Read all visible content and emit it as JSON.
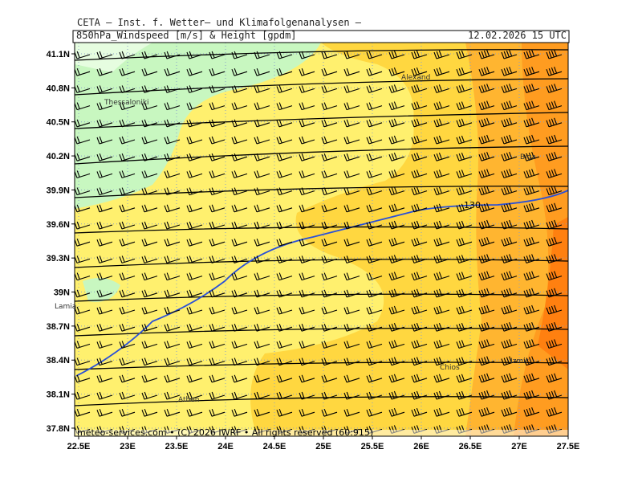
{
  "header": {
    "org": "CETA – Inst. f. Wetter– und Klimafolgenanalysen –",
    "title": "850hPa_Windspeed [m/s] & Height [gpdm]",
    "time": "12.02.2026 15 UTC"
  },
  "axes": {
    "lat": [
      "41.1N",
      "40.8N",
      "40.5N",
      "40.2N",
      "39.9N",
      "39.6N",
      "39.3N",
      "39N",
      "38.7N",
      "38.4N",
      "38.1N",
      "37.8N"
    ],
    "lon": [
      "22.5E",
      "23E",
      "23.5E",
      "24E",
      "24.5E",
      "25E",
      "25.5E",
      "26E",
      "26.5E",
      "27E",
      "27.5E"
    ]
  },
  "places": [
    {
      "label": "Thessaloniki"
    },
    {
      "label": "Alexand"
    },
    {
      "label": "Biga"
    },
    {
      "label": "Lamia"
    },
    {
      "label": "Athen"
    },
    {
      "label": "Chios"
    },
    {
      "label": "Izmir"
    }
  ],
  "contour_label": "130",
  "footer": "meteo-services.com • (C) 2026 IWRF • All rights reserved (60:915)"
}
